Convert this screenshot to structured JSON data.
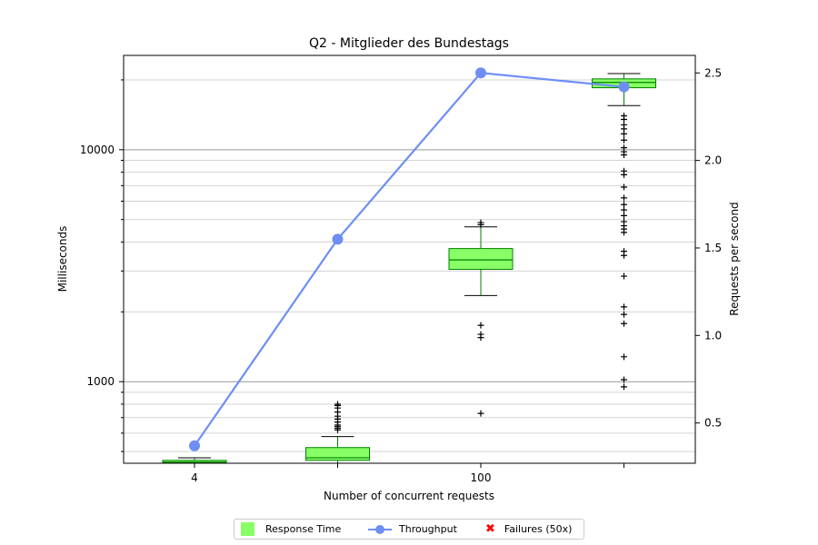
{
  "chart_data": {
    "type": "box",
    "title": "Q2 - Mitglieder des Bundestags",
    "xlabel": "Number of concurrent requests",
    "ylabel": "Milliseconds",
    "y2label": "Requests per second",
    "yscale": "log",
    "ylim": [
      445,
      25500
    ],
    "y_ticks": [
      1000,
      10000
    ],
    "y2lim": [
      0.27,
      2.6
    ],
    "y2_ticks": [
      0.5,
      1.0,
      1.5,
      2.0,
      2.5
    ],
    "x_positions": [
      1,
      2,
      3,
      4
    ],
    "x_tick_labels": [
      {
        "pos": 1,
        "label": "4"
      },
      {
        "pos": 3,
        "label": "100"
      }
    ],
    "response_time": [
      {
        "pos": 1,
        "whisker_low": 445,
        "q1": 445,
        "median": 450,
        "q3": 458,
        "whisker_high": 470,
        "outliers": []
      },
      {
        "pos": 2,
        "whisker_low": 445,
        "q1": 458,
        "median": 470,
        "q3": 520,
        "whisker_high": 580,
        "outliers": [
          620,
          630,
          640,
          650,
          670,
          690,
          710,
          740,
          770,
          790,
          800
        ]
      },
      {
        "pos": 3,
        "whisker_low": 2350,
        "q1": 3050,
        "median": 3350,
        "q3": 3750,
        "whisker_high": 4650,
        "outliers": [
          730,
          1550,
          1600,
          1750,
          4750,
          4850
        ]
      },
      {
        "pos": 4,
        "whisker_low": 15500,
        "q1": 18500,
        "median": 19500,
        "q3": 20200,
        "whisker_high": 21300,
        "outliers": [
          950,
          1020,
          1280,
          1780,
          1950,
          2100,
          2850,
          3500,
          3650,
          4400,
          4550,
          4700,
          4900,
          5200,
          5500,
          5800,
          6200,
          6900,
          7800,
          8100,
          9500,
          9800,
          10200,
          11000,
          11700,
          12300,
          12800,
          13500,
          14000
        ]
      }
    ],
    "throughput": {
      "name": "Throughput",
      "x": [
        1,
        2,
        3,
        4
      ],
      "values": [
        0.37,
        1.55,
        2.5,
        2.42
      ]
    },
    "legend": {
      "placement": "bottom-center",
      "entries": [
        "Response Time",
        "Throughput",
        "Failures (50x)"
      ]
    },
    "colors": {
      "box": "#88ff66",
      "box_edge": "#008000",
      "line": "#6f8ef5",
      "failure": "#ff0000"
    },
    "grid": true
  }
}
